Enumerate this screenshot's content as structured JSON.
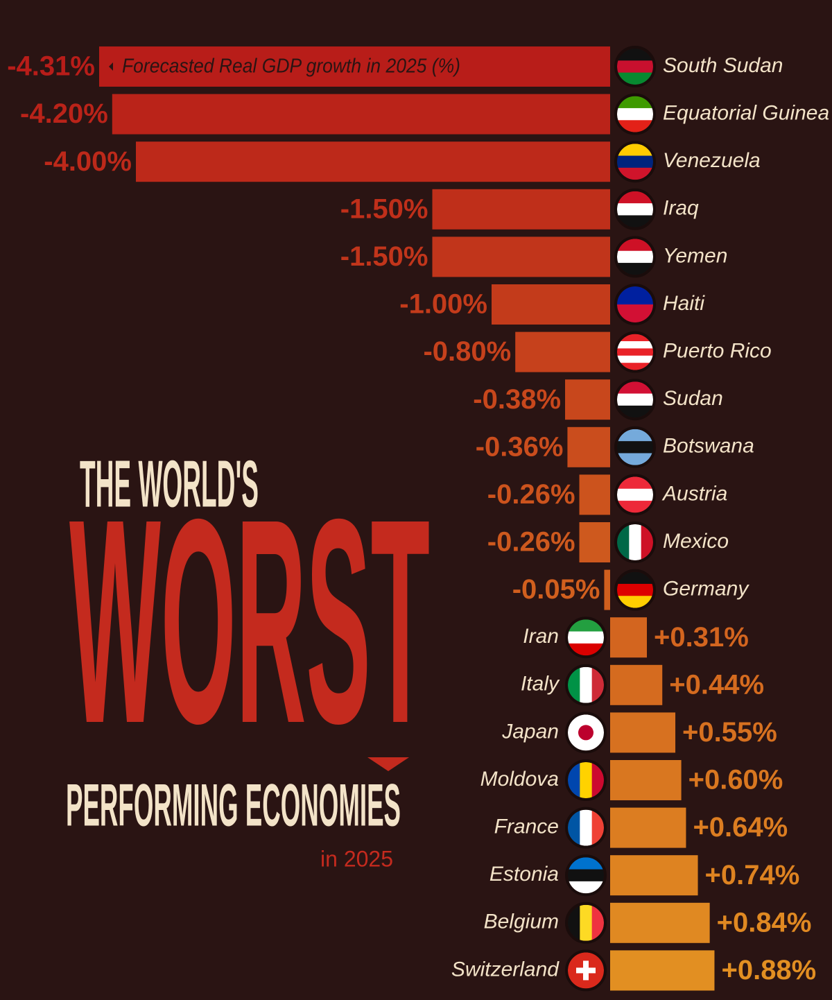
{
  "chart_data": {
    "type": "hbar",
    "title_top": "THE WORLD'S",
    "title_main": "WORST",
    "title_bottom": "PERFORMING ECONOMIES",
    "subtitle": "in 2025",
    "annotation": "Forecasted Real GDP growth in 2025 (%)",
    "categories": [
      "South Sudan",
      "Equatorial Guinea",
      "Venezuela",
      "Iraq",
      "Yemen",
      "Haiti",
      "Puerto Rico",
      "Sudan",
      "Botswana",
      "Austria",
      "Mexico",
      "Germany",
      "Iran",
      "Italy",
      "Japan",
      "Moldova",
      "France",
      "Estonia",
      "Belgium",
      "Switzerland"
    ],
    "values": [
      -4.31,
      -4.2,
      -4.0,
      -1.5,
      -1.5,
      -1.0,
      -0.8,
      -0.38,
      -0.36,
      -0.26,
      -0.26,
      -0.05,
      0.31,
      0.44,
      0.55,
      0.6,
      0.64,
      0.74,
      0.84,
      0.88
    ],
    "value_labels": [
      "-4.31%",
      "-4.20%",
      "-4.00%",
      "-1.50%",
      "-1.50%",
      "-1.00%",
      "-0.80%",
      "-0.38%",
      "-0.36%",
      "-0.26%",
      "-0.26%",
      "-0.05%",
      "+0.31%",
      "+0.44%",
      "+0.55%",
      "+0.60%",
      "+0.64%",
      "+0.74%",
      "+0.84%",
      "+0.88%"
    ],
    "colors": [
      "#b81d19",
      "#ba2319",
      "#bd291a",
      "#bf2f1a",
      "#c1351b",
      "#c33b1b",
      "#c6411c",
      "#c8471c",
      "#ca4d1d",
      "#cc531d",
      "#ce591e",
      "#d15f1e",
      "#d3651f",
      "#d56b1f",
      "#d77120",
      "#d97720",
      "#dc7d21",
      "#de8321",
      "#e08922",
      "#e28f22"
    ]
  }
}
